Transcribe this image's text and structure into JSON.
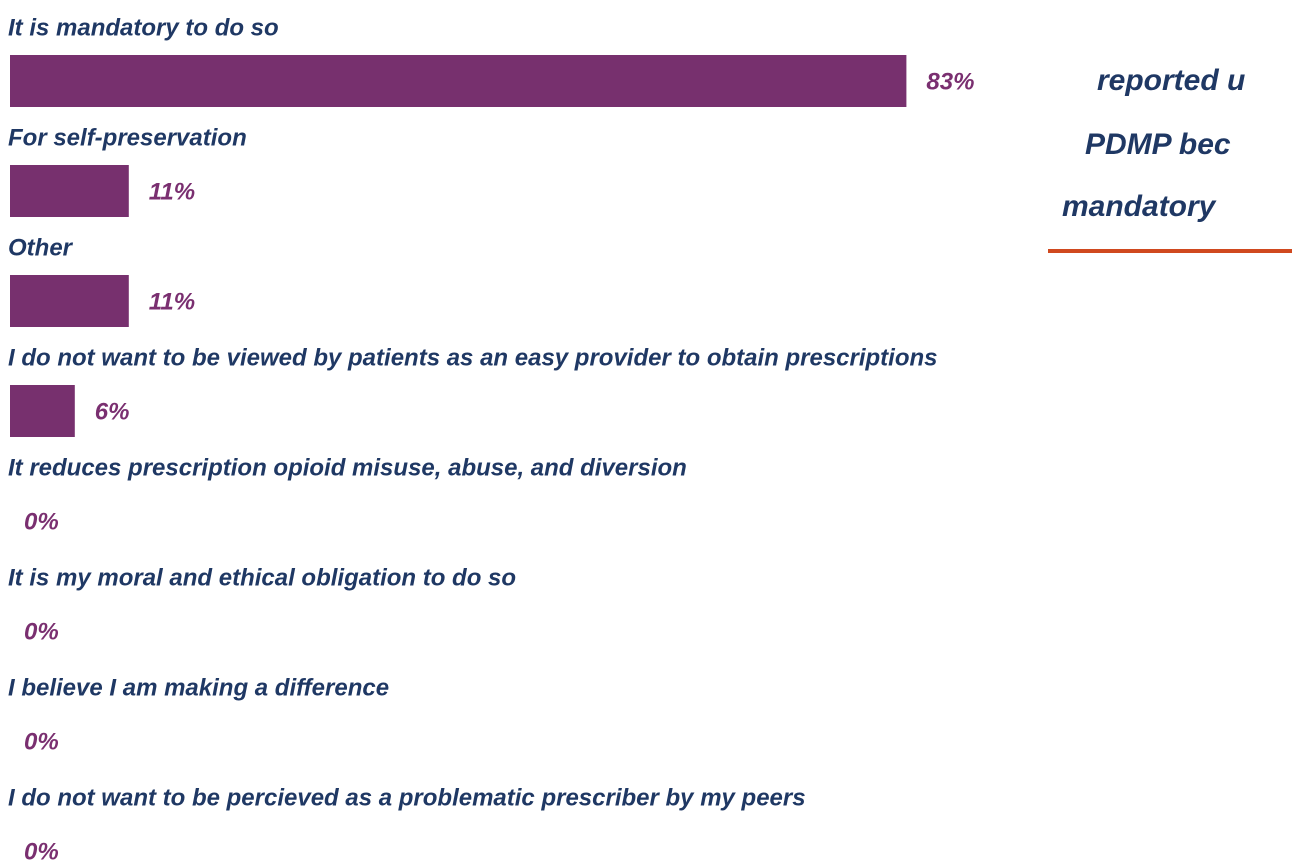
{
  "chart_data": {
    "type": "bar",
    "orientation": "horizontal",
    "categories": [
      "It is mandatory to do so",
      "For self-preservation",
      "Other",
      "I do not want to be viewed by patients as an easy provider to obtain prescriptions",
      "It reduces prescription opioid misuse, abuse, and diversion",
      "It is my moral and ethical obligation to do so",
      "I believe I am making a difference",
      "I do not want to be percieved as a problematic prescriber by my peers"
    ],
    "values": [
      83,
      11,
      11,
      6,
      0,
      0,
      0,
      0
    ],
    "value_labels": [
      "83%",
      "11%",
      "11%",
      "6%",
      "0%",
      "0%",
      "0%",
      "0%"
    ],
    "color": "#77306e",
    "annotation": [
      "reported u",
      "PDMP bec",
      "mandatory"
    ]
  }
}
